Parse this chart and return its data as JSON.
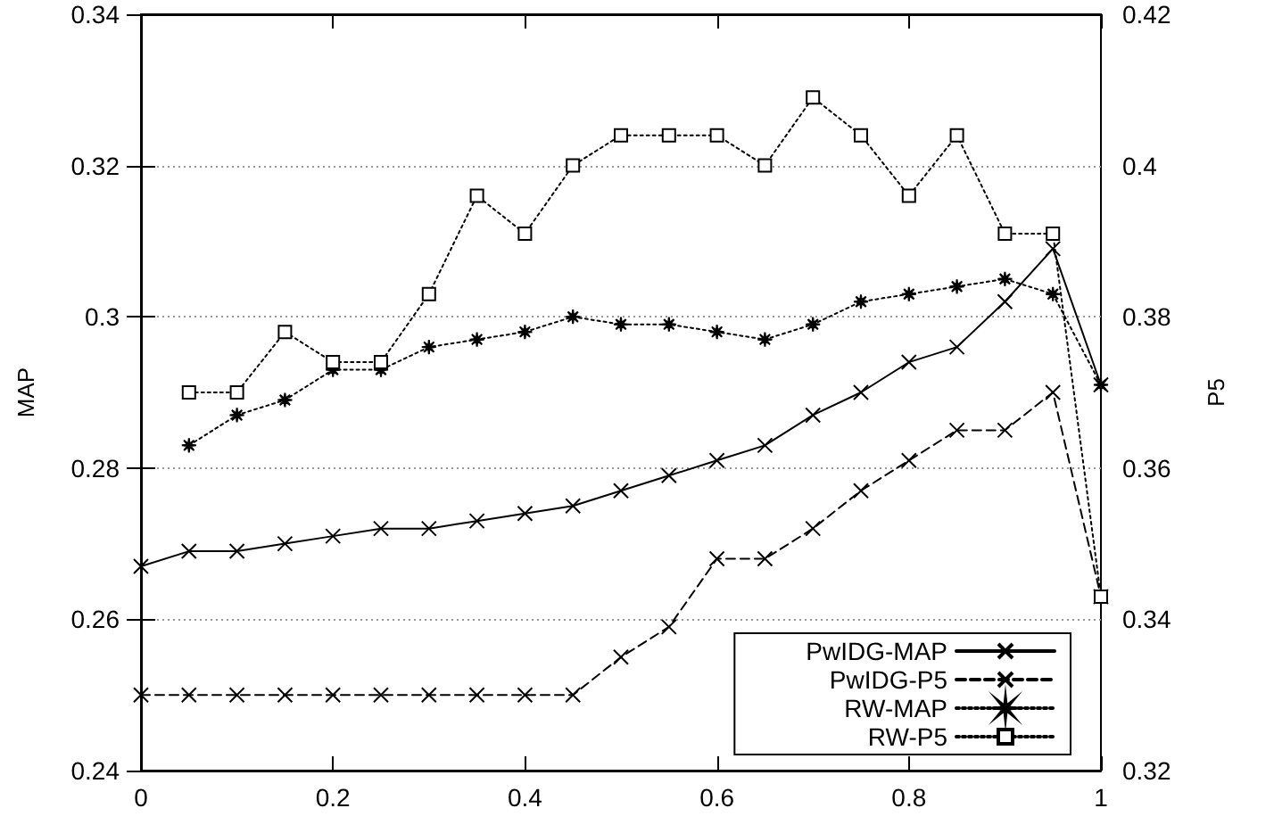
{
  "chart_data": {
    "type": "line",
    "xlabel": null,
    "ylabel": "MAP",
    "y2label": "P5",
    "x": [
      0,
      0.05,
      0.1,
      0.15,
      0.2,
      0.25,
      0.3,
      0.35,
      0.4,
      0.45,
      0.5,
      0.55,
      0.6,
      0.65,
      0.7,
      0.75,
      0.8,
      0.85,
      0.9,
      0.95,
      1
    ],
    "series": [
      {
        "name": "PwIDG-MAP",
        "color": "#000000",
        "marker": "cross",
        "line_style": "solid",
        "values": [
          0.267,
          0.269,
          0.269,
          0.27,
          0.271,
          0.272,
          0.272,
          0.273,
          0.274,
          0.275,
          0.277,
          0.279,
          0.281,
          0.283,
          0.287,
          0.29,
          0.294,
          0.296,
          0.302,
          0.309,
          0.291
        ]
      },
      {
        "name": "PwIDG-P5",
        "color": "#000000",
        "marker": "cross",
        "line_style": "dashed",
        "axis": "y2",
        "values": [
          0.33,
          0.33,
          0.33,
          0.33,
          0.33,
          0.33,
          0.33,
          0.33,
          0.33,
          0.33,
          0.335,
          0.339,
          0.348,
          0.348,
          0.352,
          0.357,
          0.361,
          0.365,
          0.365,
          0.37,
          0.343
        ]
      },
      {
        "name": "RW-MAP",
        "color": "#000000",
        "marker": "star",
        "line_style": "dotted",
        "values": [
          null,
          0.283,
          0.287,
          0.289,
          0.293,
          0.293,
          0.296,
          0.297,
          0.298,
          0.3,
          0.299,
          0.299,
          0.298,
          0.297,
          0.299,
          0.302,
          0.303,
          0.304,
          0.305,
          0.303,
          0.291
        ]
      },
      {
        "name": "RW-P5",
        "color": "#000000",
        "marker": "square",
        "line_style": "dotted",
        "axis": "y2",
        "values": [
          null,
          0.37,
          0.37,
          0.378,
          0.374,
          0.374,
          0.383,
          0.396,
          0.391,
          0.4,
          0.404,
          0.404,
          0.404,
          0.4,
          0.409,
          0.404,
          0.396,
          0.404,
          0.391,
          0.391,
          0.343
        ]
      }
    ],
    "xlim": [
      0,
      1
    ],
    "xticks": [
      0,
      0.2,
      0.4,
      0.6,
      0.8,
      1
    ],
    "ylim": [
      0.24,
      0.34
    ],
    "yticks": [
      0.24,
      0.26,
      0.28,
      0.3,
      0.32,
      0.34
    ],
    "y2lim": [
      0.32,
      0.42
    ],
    "y2ticks": [
      0.32,
      0.34,
      0.36,
      0.38,
      0.4,
      0.42
    ],
    "grid": "y",
    "legend": "bottom right"
  }
}
